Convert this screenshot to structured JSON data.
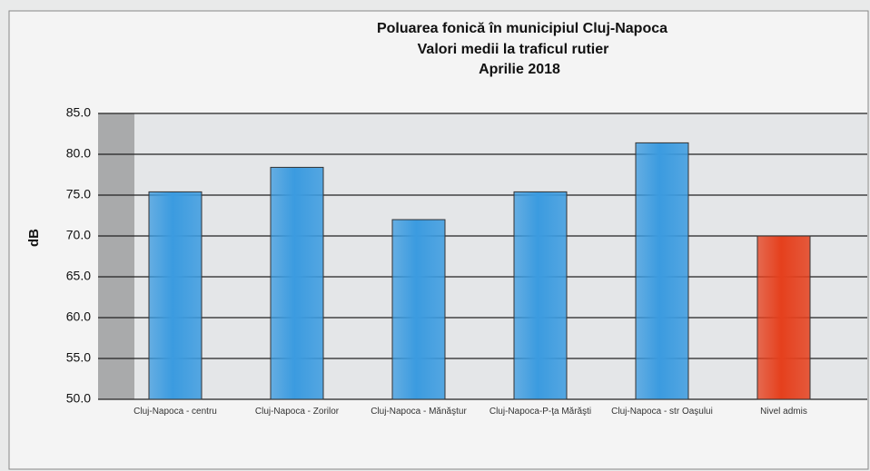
{
  "chart_data": {
    "type": "bar",
    "title": [
      "Poluarea fonică în municipiul Cluj-Napoca",
      "Valori medii la traficul rutier",
      "Aprilie 2018"
    ],
    "y_label": "dB",
    "categories": [
      "Cluj-Napoca - centru",
      "Cluj-Napoca - Zorilor",
      "Cluj-Napoca - Mănăştur",
      "Cluj-Napoca-P-ţa Mărăşti",
      "Cluj-Napoca - str Oaşului",
      "Nivel admis"
    ],
    "values": [
      75.4,
      78.4,
      72.0,
      75.4,
      81.4,
      70.0
    ],
    "colors": [
      "#3b9be0",
      "#3b9be0",
      "#3b9be0",
      "#3b9be0",
      "#3b9be0",
      "#e5401d"
    ],
    "ylim": [
      50,
      85
    ],
    "yticks": [
      {
        "value": 50,
        "label": "50.0"
      },
      {
        "value": 55,
        "label": "55.0"
      },
      {
        "value": 60,
        "label": "60.0"
      },
      {
        "value": 65,
        "label": "65.0"
      },
      {
        "value": 70,
        "label": "70.0"
      },
      {
        "value": 75,
        "label": "75.0"
      },
      {
        "value": 80,
        "label": "80.0"
      },
      {
        "value": 85,
        "label": "85.0"
      }
    ],
    "grid": true
  }
}
